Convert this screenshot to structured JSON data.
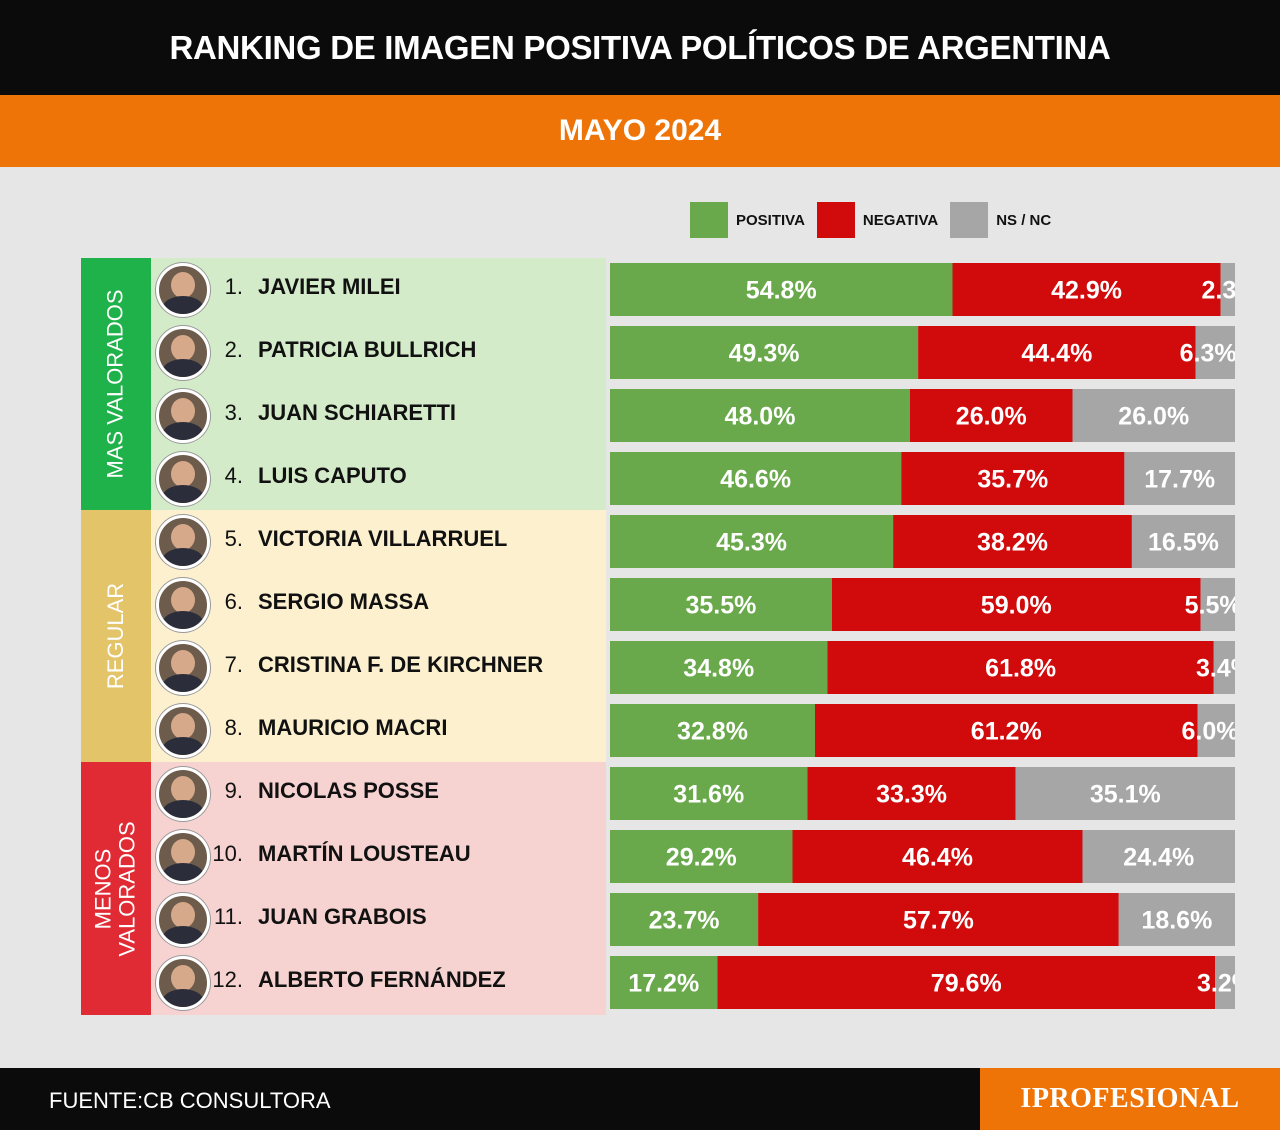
{
  "header": {
    "title": "RANKING DE IMAGEN POSITIVA POLÍTICOS DE ARGENTINA",
    "subtitle": "MAYO 2024"
  },
  "legend": [
    {
      "label": "POSITIVA",
      "color": "#69a94b"
    },
    {
      "label": "NEGATIVA",
      "color": "#d10a0c"
    },
    {
      "label": "NS / NC",
      "color": "#a6a6a6"
    }
  ],
  "groups": [
    {
      "label": "MAS VALORADOS",
      "color": "#20b24a",
      "bg": "#d4ebc9"
    },
    {
      "label": "REGULAR",
      "color": "#e3c469",
      "bg": "#fcf0cf"
    },
    {
      "label": "MENOS VALORADOS",
      "color": "#e02b35",
      "bg": "#f6d2d1"
    }
  ],
  "chart_data": {
    "type": "bar",
    "orientation": "horizontal",
    "stacked": true,
    "categories": [
      "JAVIER MILEI",
      "PATRICIA BULLRICH",
      "JUAN SCHIARETTI",
      "LUIS CAPUTO",
      "VICTORIA VILLARRUEL",
      "SERGIO MASSA",
      "CRISTINA F. DE KIRCHNER",
      "MAURICIO MACRI",
      "NICOLAS POSSE",
      "MARTÍN LOUSTEAU",
      "JUAN GRABOIS",
      "ALBERTO FERNÁNDEZ"
    ],
    "ranks": [
      "1.",
      "2.",
      "3.",
      "4.",
      "5.",
      "6.",
      "7.",
      "8.",
      "9.",
      "10.",
      "11.",
      "12."
    ],
    "row_groups": [
      0,
      0,
      0,
      0,
      1,
      1,
      1,
      1,
      2,
      2,
      2,
      2
    ],
    "series": [
      {
        "name": "POSITIVA",
        "color": "#69a94b",
        "values": [
          54.8,
          49.3,
          48.0,
          46.6,
          45.3,
          35.5,
          34.8,
          32.8,
          31.6,
          29.2,
          23.7,
          17.2
        ]
      },
      {
        "name": "NEGATIVA",
        "color": "#d10a0c",
        "values": [
          42.9,
          44.4,
          26.0,
          35.7,
          38.2,
          59.0,
          61.8,
          61.2,
          33.3,
          46.4,
          57.7,
          79.6
        ]
      },
      {
        "name": "NS / NC",
        "color": "#a6a6a6",
        "values": [
          2.3,
          6.3,
          26.0,
          17.7,
          16.5,
          5.5,
          3.4,
          6.0,
          35.1,
          24.4,
          18.6,
          3.2
        ]
      }
    ],
    "xlim": [
      0,
      100
    ]
  },
  "footer": {
    "source": "FUENTE:CB CONSULTORA",
    "brand": "IPROFESIONAL"
  }
}
